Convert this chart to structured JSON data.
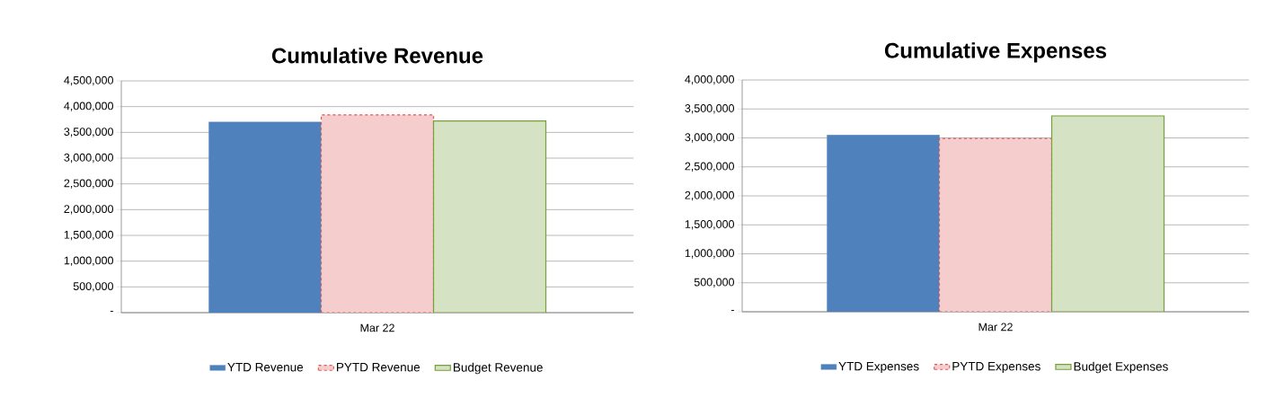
{
  "chart_data": [
    {
      "type": "bar",
      "title": "Cumulative Revenue",
      "categories": [
        "Mar 22"
      ],
      "series": [
        {
          "name": "YTD Revenue",
          "color": "#4f81bd",
          "values": [
            3700000
          ]
        },
        {
          "name": "PYTD Revenue",
          "color": "#e05a5a",
          "values": [
            3840000
          ]
        },
        {
          "name": "Budget Revenue",
          "color": "#77a03a",
          "values": [
            3720000
          ]
        }
      ],
      "ylim": [
        0,
        4500000
      ],
      "yticks": [
        {
          "value": 0,
          "label": "-"
        },
        {
          "value": 500000,
          "label": "500,000"
        },
        {
          "value": 1000000,
          "label": "1,000,000"
        },
        {
          "value": 1500000,
          "label": "1,500,000"
        },
        {
          "value": 2000000,
          "label": "2,000,000"
        },
        {
          "value": 2500000,
          "label": "2,500,000"
        },
        {
          "value": 3000000,
          "label": "3,000,000"
        },
        {
          "value": 3500000,
          "label": "3,500,000"
        },
        {
          "value": 4000000,
          "label": "4,000,000"
        },
        {
          "value": 4500000,
          "label": "4,500,000"
        }
      ],
      "grid": "y",
      "legend": "bottom"
    },
    {
      "type": "bar",
      "title": "Cumulative Expenses",
      "categories": [
        "Mar 22"
      ],
      "series": [
        {
          "name": "YTD Expenses",
          "color": "#4f81bd",
          "values": [
            3050000
          ]
        },
        {
          "name": "PYTD Expenses",
          "color": "#e05a5a",
          "values": [
            2990000
          ]
        },
        {
          "name": "Budget Expenses",
          "color": "#77a03a",
          "values": [
            3380000
          ]
        }
      ],
      "ylim": [
        0,
        4000000
      ],
      "yticks": [
        {
          "value": 0,
          "label": "-"
        },
        {
          "value": 500000,
          "label": "500,000"
        },
        {
          "value": 1000000,
          "label": "1,000,000"
        },
        {
          "value": 1500000,
          "label": "1,500,000"
        },
        {
          "value": 2000000,
          "label": "2,000,000"
        },
        {
          "value": 2500000,
          "label": "2,500,000"
        },
        {
          "value": 3000000,
          "label": "3,000,000"
        },
        {
          "value": 3500000,
          "label": "3,500,000"
        },
        {
          "value": 4000000,
          "label": "4,000,000"
        }
      ],
      "grid": "y",
      "legend": "bottom"
    }
  ]
}
